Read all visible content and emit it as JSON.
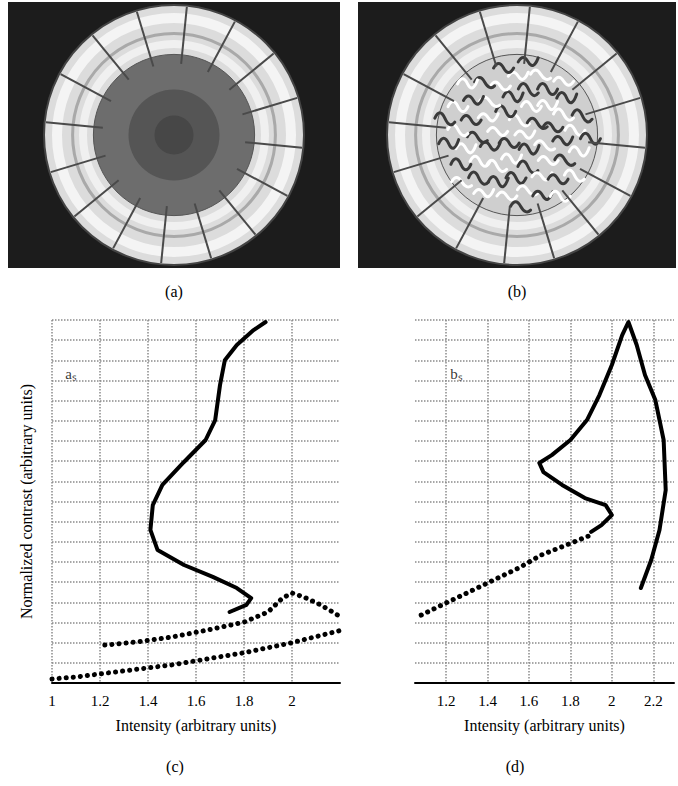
{
  "images": [
    {
      "label": "(a)"
    },
    {
      "label": "(b)"
    }
  ],
  "chart_data": [
    {
      "type": "line",
      "panel_label": "(c)",
      "x_label": "Intensity (arbitrary units)",
      "y_label": "Normalized contrast (arbitrary units)",
      "annotation": {
        "text": "aₛ",
        "x": 1.08,
        "y": 15.3
      },
      "xlim": [
        1,
        2.2
      ],
      "xticks": [
        1,
        1.2,
        1.4,
        1.6,
        1.8,
        2
      ],
      "ylim": [
        0,
        18
      ],
      "yticks": [
        0,
        1,
        2,
        3,
        4,
        5,
        6,
        7,
        8,
        9,
        10,
        11,
        12,
        13,
        14,
        15,
        16,
        17,
        18
      ],
      "grid": true,
      "tick_labels": "x",
      "series": [
        {
          "color": "#000000",
          "line_style": "solid",
          "x": [
            1.89,
            1.84,
            1.77,
            1.72,
            1.7,
            1.68,
            1.64,
            1.55,
            1.46,
            1.42,
            1.41,
            1.44,
            1.55,
            1.67,
            1.77,
            1.83,
            1.81,
            1.74
          ],
          "values": [
            17.9,
            17.5,
            16.76,
            16.0,
            14.77,
            13.04,
            12.05,
            10.96,
            9.82,
            8.82,
            7.59,
            6.59,
            5.85,
            5.26,
            4.71,
            4.21,
            3.87,
            3.52
          ]
        },
        {
          "color": "#000000",
          "line_style": "dotted",
          "x": [
            1.22,
            1.35,
            1.5,
            1.65,
            1.8,
            1.9,
            1.96,
            2.0,
            2.05,
            2.12,
            2.2
          ],
          "values": [
            1.88,
            2.03,
            2.28,
            2.63,
            3.02,
            3.52,
            4.21,
            4.46,
            4.26,
            3.87,
            3.3
          ]
        },
        {
          "color": "#000000",
          "line_style": "dotted",
          "x": [
            1.0,
            1.1,
            1.2,
            1.3,
            1.4,
            1.5,
            1.6,
            1.7,
            1.8,
            1.9,
            2.0,
            2.1,
            2.2
          ],
          "values": [
            0.2,
            0.3,
            0.45,
            0.6,
            0.75,
            0.9,
            1.1,
            1.3,
            1.5,
            1.75,
            2.0,
            2.3,
            2.6
          ]
        }
      ]
    },
    {
      "type": "line",
      "panel_label": "(d)",
      "x_label": "Intensity (arbitrary units)",
      "annotation": {
        "text": "bₛ",
        "x": 1.25,
        "y": 15.3
      },
      "xlim": [
        1.05,
        2.3
      ],
      "xticks": [
        1.2,
        1.4,
        1.6,
        1.8,
        2,
        2.2
      ],
      "ylim": [
        0,
        18
      ],
      "yticks": [
        0,
        1,
        2,
        3,
        4,
        5,
        6,
        7,
        8,
        9,
        10,
        11,
        12,
        13,
        14,
        15,
        16,
        17,
        18
      ],
      "grid": true,
      "tick_labels": "x",
      "series": [
        {
          "color": "#000000",
          "line_style": "solid",
          "x": [
            2.14,
            2.19,
            2.23,
            2.26,
            2.25,
            2.21,
            2.16,
            2.12,
            2.08,
            2.05,
            2.0,
            1.94,
            1.88,
            1.8,
            1.71,
            1.65,
            1.67,
            1.76,
            1.87,
            1.97,
            2.0,
            1.95,
            1.9
          ],
          "values": [
            4.71,
            6.1,
            7.59,
            9.57,
            12.05,
            14.03,
            15.27,
            16.76,
            17.9,
            17.25,
            15.77,
            14.28,
            13.04,
            12.05,
            11.3,
            10.91,
            10.46,
            9.82,
            9.17,
            8.82,
            8.33,
            7.83,
            7.49
          ]
        },
        {
          "color": "#000000",
          "line_style": "dotted",
          "x": [
            1.08,
            1.2,
            1.31,
            1.43,
            1.55,
            1.66,
            1.78,
            1.9
          ],
          "values": [
            3.37,
            3.97,
            4.51,
            5.11,
            5.7,
            6.35,
            6.84,
            7.34
          ]
        }
      ]
    }
  ]
}
